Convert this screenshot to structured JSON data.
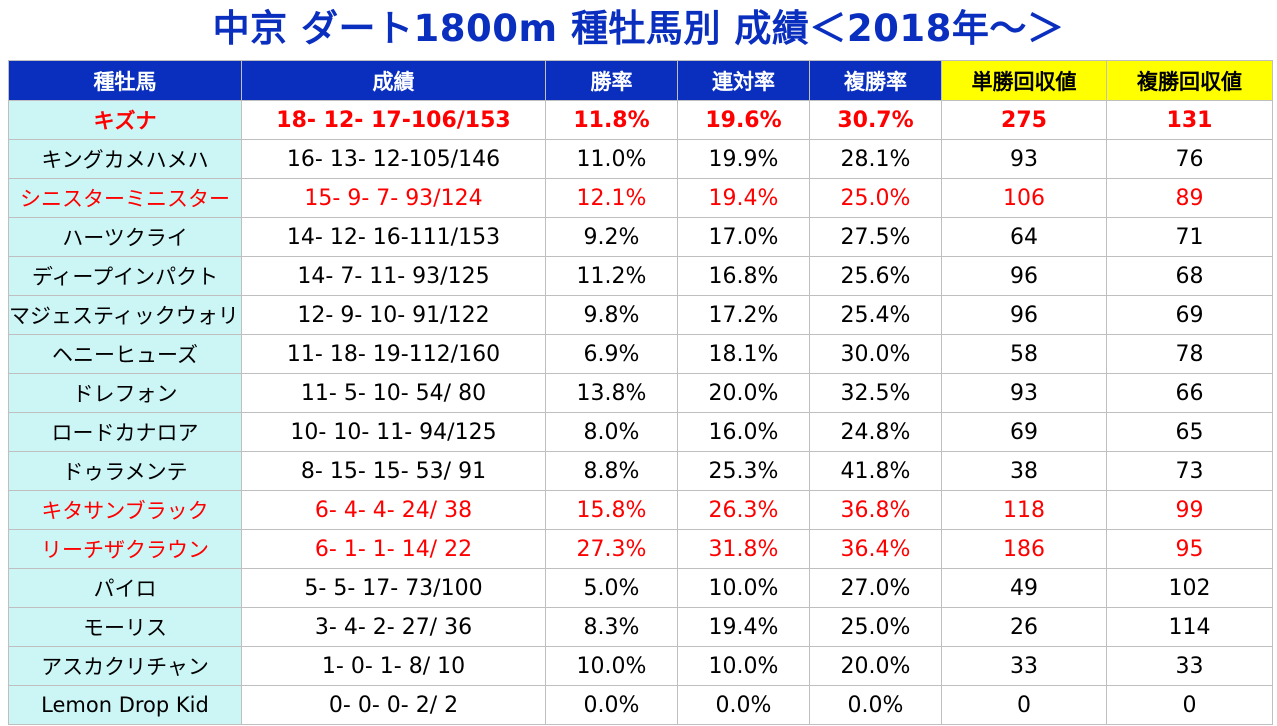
{
  "title": "中京 ダート1800m 種牡馬別 成績＜2018年～＞",
  "colors": {
    "title": "#0a2fbf",
    "header_bg": "#0a2fbf",
    "header_highlight": "#ffff00",
    "name_col_bg": "#ccf6f6",
    "highlight_text": "#ff0000"
  },
  "headers": [
    "種牡馬",
    "成績",
    "勝率",
    "連対率",
    "複勝率",
    "単勝回収値",
    "複勝回収値"
  ],
  "rows": [
    {
      "name": "キズナ",
      "record": "18- 12- 17-106/153",
      "win": "11.8%",
      "top2": "19.6%",
      "top3": "30.7%",
      "win_return": "275",
      "place_return": "131",
      "highlight": true,
      "bold": true
    },
    {
      "name": "キングカメハメハ",
      "record": "16- 13- 12-105/146",
      "win": "11.0%",
      "top2": "19.9%",
      "top3": "28.1%",
      "win_return": "93",
      "place_return": "76",
      "highlight": false,
      "bold": false
    },
    {
      "name": "シニスターミニスター",
      "record": "15-  9-  7- 93/124",
      "win": "12.1%",
      "top2": "19.4%",
      "top3": "25.0%",
      "win_return": "106",
      "place_return": "89",
      "highlight": true,
      "bold": false
    },
    {
      "name": "ハーツクライ",
      "record": "14- 12- 16-111/153",
      "win": "9.2%",
      "top2": "17.0%",
      "top3": "27.5%",
      "win_return": "64",
      "place_return": "71",
      "highlight": false,
      "bold": false
    },
    {
      "name": "ディープインパクト",
      "record": "14-  7- 11- 93/125",
      "win": "11.2%",
      "top2": "16.8%",
      "top3": "25.6%",
      "win_return": "96",
      "place_return": "68",
      "highlight": false,
      "bold": false
    },
    {
      "name": "マジェスティックウォリアー",
      "record": "12-  9- 10- 91/122",
      "win": "9.8%",
      "top2": "17.2%",
      "top3": "25.4%",
      "win_return": "96",
      "place_return": "69",
      "highlight": false,
      "bold": false
    },
    {
      "name": "ヘニーヒューズ",
      "record": "11- 18- 19-112/160",
      "win": "6.9%",
      "top2": "18.1%",
      "top3": "30.0%",
      "win_return": "58",
      "place_return": "78",
      "highlight": false,
      "bold": false
    },
    {
      "name": "ドレフォン",
      "record": "11-  5- 10- 54/ 80",
      "win": "13.8%",
      "top2": "20.0%",
      "top3": "32.5%",
      "win_return": "93",
      "place_return": "66",
      "highlight": false,
      "bold": false
    },
    {
      "name": "ロードカナロア",
      "record": "10- 10- 11- 94/125",
      "win": "8.0%",
      "top2": "16.0%",
      "top3": "24.8%",
      "win_return": "69",
      "place_return": "65",
      "highlight": false,
      "bold": false
    },
    {
      "name": "ドゥラメンテ",
      "record": "8- 15- 15- 53/ 91",
      "win": "8.8%",
      "top2": "25.3%",
      "top3": "41.8%",
      "win_return": "38",
      "place_return": "73",
      "highlight": false,
      "bold": false
    },
    {
      "name": "キタサンブラック",
      "record": "6-  4-  4- 24/ 38",
      "win": "15.8%",
      "top2": "26.3%",
      "top3": "36.8%",
      "win_return": "118",
      "place_return": "99",
      "highlight": true,
      "bold": false
    },
    {
      "name": "リーチザクラウン",
      "record": "6-  1-  1- 14/ 22",
      "win": "27.3%",
      "top2": "31.8%",
      "top3": "36.4%",
      "win_return": "186",
      "place_return": "95",
      "highlight": true,
      "bold": false
    },
    {
      "name": "パイロ",
      "record": "5-  5- 17- 73/100",
      "win": "5.0%",
      "top2": "10.0%",
      "top3": "27.0%",
      "win_return": "49",
      "place_return": "102",
      "highlight": false,
      "bold": false
    },
    {
      "name": "モーリス",
      "record": "3-  4-  2- 27/ 36",
      "win": "8.3%",
      "top2": "19.4%",
      "top3": "25.0%",
      "win_return": "26",
      "place_return": "114",
      "highlight": false,
      "bold": false
    },
    {
      "name": "アスカクリチャン",
      "record": "1-  0-  1-  8/ 10",
      "win": "10.0%",
      "top2": "10.0%",
      "top3": "20.0%",
      "win_return": "33",
      "place_return": "33",
      "highlight": false,
      "bold": false
    },
    {
      "name": "Lemon Drop Kid",
      "record": "0-  0-  0-  2/  2",
      "win": "0.0%",
      "top2": "0.0%",
      "top3": "0.0%",
      "win_return": "0",
      "place_return": "0",
      "highlight": false,
      "bold": false
    }
  ]
}
